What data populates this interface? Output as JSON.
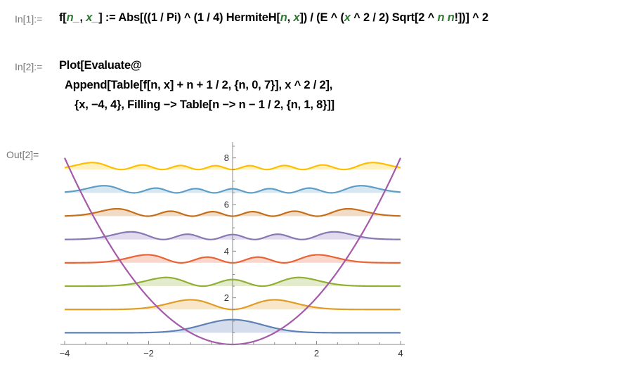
{
  "notebook": {
    "cells": [
      {
        "label": "In[1]:=",
        "lines": [
          [
            {
              "t": "f["
            },
            {
              "t": "n_",
              "sym": true
            },
            {
              "t": ", "
            },
            {
              "t": "x_",
              "sym": true
            },
            {
              "t": "] := Abs[((1 / Pi) ^ (1 / 4) HermiteH["
            },
            {
              "t": "n",
              "sym": true
            },
            {
              "t": ", "
            },
            {
              "t": "x",
              "sym": true
            },
            {
              "t": "]) / (E ^ ("
            },
            {
              "t": "x",
              "sym": true
            },
            {
              "t": " ^ 2 / 2) Sqrt[2 ^ "
            },
            {
              "t": "n n",
              "sym": true
            },
            {
              "t": "!])] ^ 2"
            }
          ]
        ]
      },
      {
        "label": "In[2]:=",
        "lines": [
          [
            {
              "t": "Plot[Evaluate@"
            }
          ],
          [
            {
              "t": " Append[Table[f[n, x] + n + 1 / 2, {n, 0, 7}], x ^ 2 / 2],"
            }
          ],
          [
            {
              "t": "   {x, −4, 4}, Filling −> Table[n −> n − 1 / 2, {n, 1, 8}]]"
            }
          ]
        ]
      }
    ],
    "output_label": "Out[2]="
  },
  "chart_data": {
    "type": "line",
    "xlim": [
      -4,
      4
    ],
    "ylim": [
      0,
      8.5
    ],
    "x_ticks": [
      -4,
      -2,
      2,
      4
    ],
    "y_ticks": [
      2,
      4,
      6,
      8
    ],
    "x_tick_labels": [
      "−4",
      "−2",
      "2",
      "4"
    ],
    "y_tick_labels": [
      "2",
      "4",
      "6",
      "8"
    ],
    "series": [
      {
        "n": 0,
        "offset": 0.5,
        "color": "#5e81b5",
        "fill": "#d5dded"
      },
      {
        "n": 1,
        "offset": 1.5,
        "color": "#e19c24",
        "fill": "#f8e6c8"
      },
      {
        "n": 2,
        "offset": 2.5,
        "color": "#8fb032",
        "fill": "#e3ebcc"
      },
      {
        "n": 3,
        "offset": 3.5,
        "color": "#eb6235",
        "fill": "#f9d7cc"
      },
      {
        "n": 4,
        "offset": 4.5,
        "color": "#8778b3",
        "fill": "#e0dced"
      },
      {
        "n": 5,
        "offset": 5.5,
        "color": "#c56e1a",
        "fill": "#f0dbc6"
      },
      {
        "n": 6,
        "offset": 6.5,
        "color": "#5d9ec7",
        "fill": "#d7e7f1"
      },
      {
        "n": 7,
        "offset": 7.5,
        "color": "#ffbf00",
        "fill": "#fff0bf"
      }
    ],
    "potential": {
      "color": "#a55aa9",
      "formula": "x^2/2"
    },
    "grid": false
  }
}
